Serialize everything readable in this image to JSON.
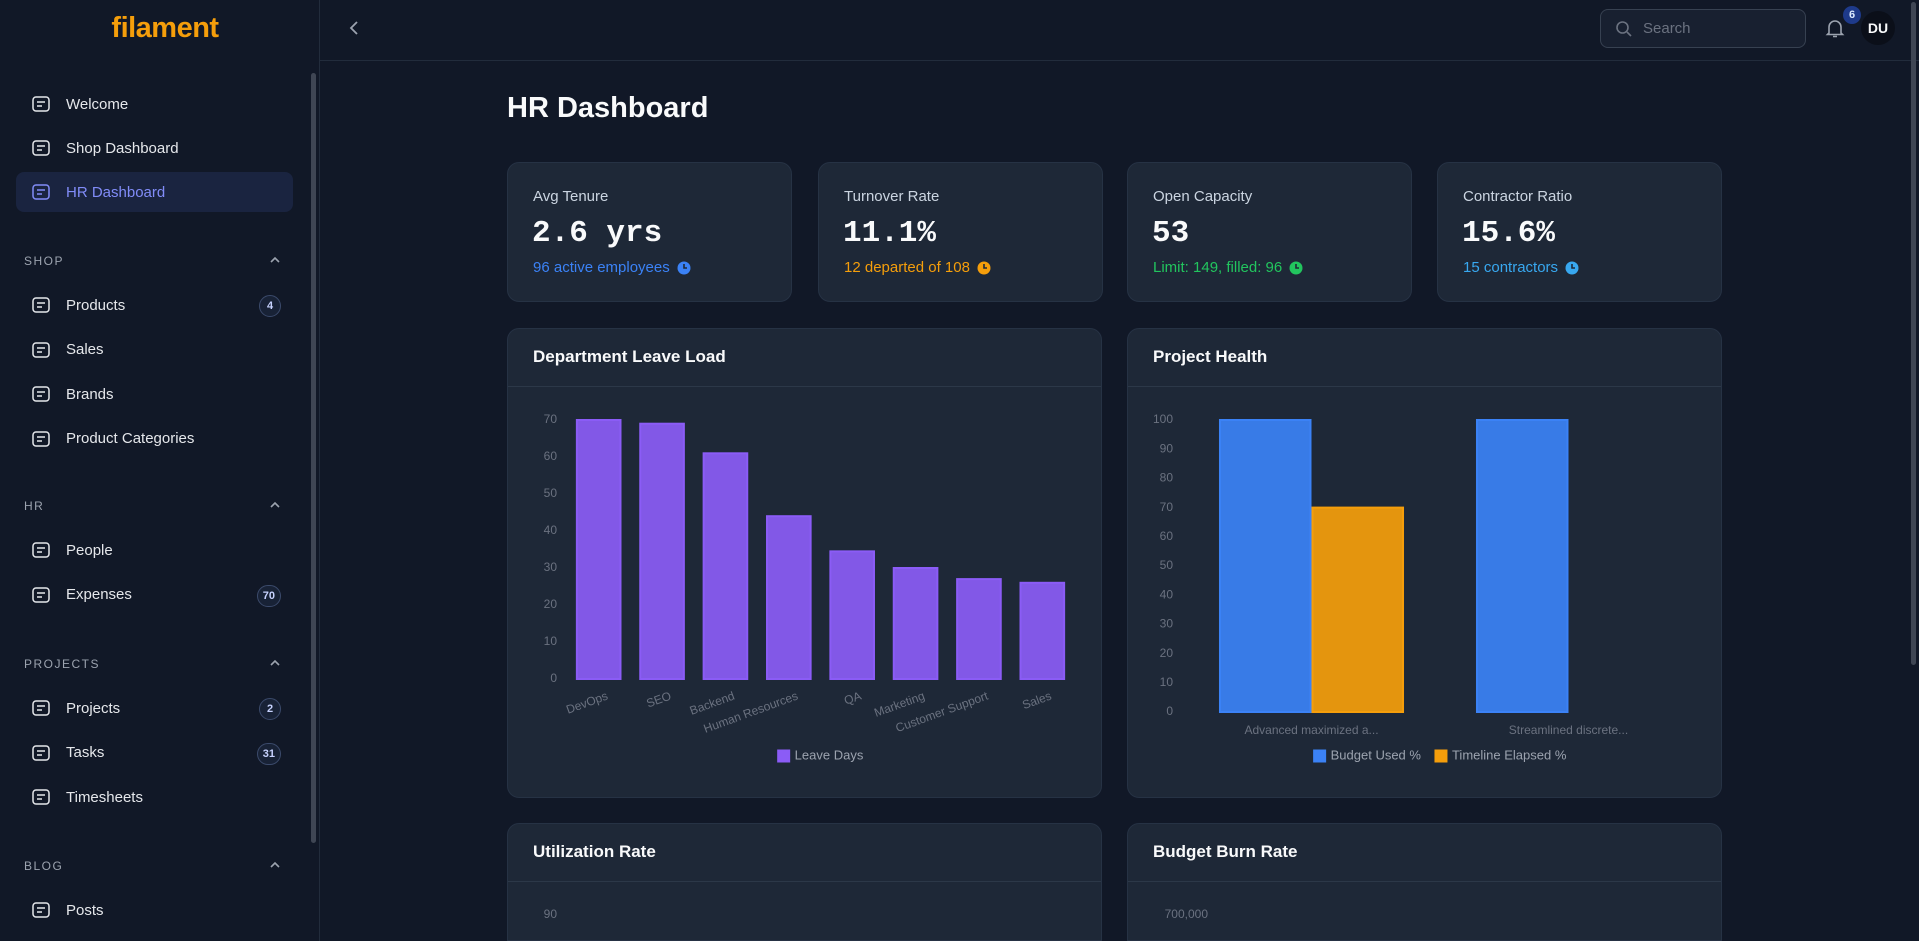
{
  "sidebar": {
    "brand": "filament",
    "nav": [
      {
        "label": "Welcome"
      },
      {
        "label": "Shop Dashboard"
      },
      {
        "label": "HR Dashboard"
      }
    ],
    "groups": [
      {
        "label": "SHOP",
        "items": [
          {
            "label": "Products",
            "badge": 4
          },
          {
            "label": "Sales"
          },
          {
            "label": "Brands"
          },
          {
            "label": "Product Categories"
          }
        ]
      },
      {
        "label": "HR",
        "items": [
          {
            "label": "People"
          },
          {
            "label": "Expenses",
            "badge": 70
          }
        ]
      },
      {
        "label": "PROJECTS",
        "items": [
          {
            "label": "Projects",
            "badge": 2
          },
          {
            "label": "Tasks",
            "badge": 31
          },
          {
            "label": "Timesheets"
          }
        ]
      },
      {
        "label": "BLOG",
        "items": [
          {
            "label": "Posts"
          }
        ]
      }
    ]
  },
  "topbar": {
    "search_placeholder": "Search",
    "notifications": 6,
    "avatar": "DU"
  },
  "page": {
    "title": "HR Dashboard"
  },
  "stats": [
    {
      "label": "Avg Tenure",
      "value": "2.6 yrs",
      "description": "96 active employees",
      "color": "#3b82f6"
    },
    {
      "label": "Turnover Rate",
      "value": "11.1%",
      "description": "12 departed of 108",
      "color": "#f59e0b"
    },
    {
      "label": "Open Capacity",
      "value": 53,
      "description": "Limit: 149, filled: 96",
      "color": "#22c55e"
    },
    {
      "label": "Contractor Ratio",
      "value": "15.6%",
      "description": "15 contractors",
      "color": "#38a8f0"
    }
  ],
  "charts": [
    {
      "type": "bar",
      "title": "Department Leave Load",
      "categories": [
        "DevOps",
        "SEO",
        "Backend",
        "Human Resources",
        "QA",
        "Marketing",
        "Customer Support",
        "Sales"
      ],
      "series": [
        {
          "name": "Leave Days",
          "color": "#8b5cf6",
          "values": [
            70,
            69,
            61,
            44,
            34.5,
            30,
            27,
            26
          ]
        }
      ],
      "ylim": [
        0,
        70
      ],
      "yticks": [
        0,
        10,
        20,
        30,
        40,
        50,
        60,
        70
      ]
    },
    {
      "type": "bar",
      "title": "Project Health",
      "categories": [
        "Advanced maximized a...",
        "Streamlined discrete..."
      ],
      "series": [
        {
          "name": "Budget Used %",
          "color": "#3b82f6",
          "values": [
            100,
            100
          ]
        },
        {
          "name": "Timeline Elapsed %",
          "color": "#f59e0b",
          "values": [
            70,
            null
          ]
        }
      ],
      "ylim": [
        0,
        100
      ],
      "yticks": [
        0,
        10,
        20,
        30,
        40,
        50,
        60,
        70,
        80,
        90,
        100
      ]
    },
    {
      "type": "line",
      "title": "Utilization Rate",
      "yticks": [
        90
      ]
    },
    {
      "type": "line",
      "title": "Budget Burn Rate",
      "yticks": [
        {
          "value": 700000,
          "label": "700,000"
        }
      ]
    }
  ]
}
